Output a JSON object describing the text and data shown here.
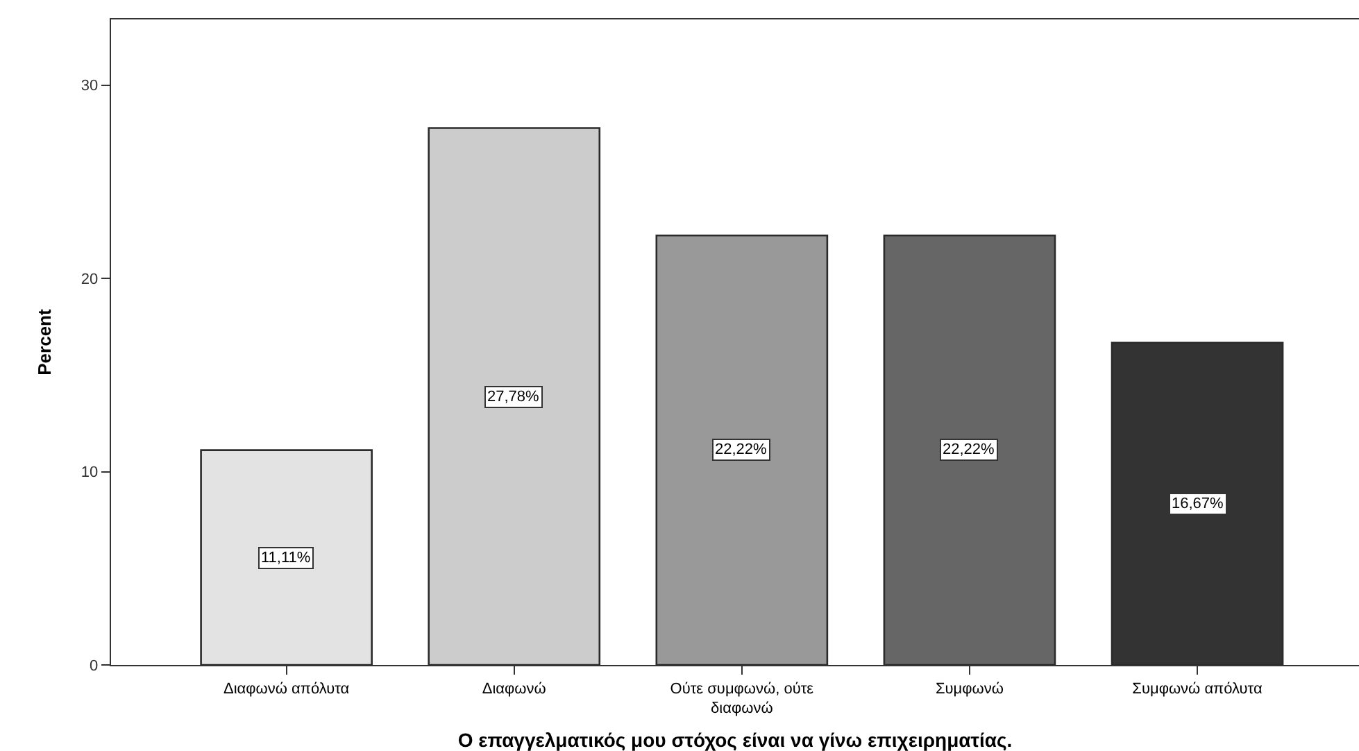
{
  "chart_data": {
    "type": "bar",
    "xlabel": "Ο επαγγελματικός μου στόχος είναι να γίνω επιχειρηματίας.",
    "ylabel": "Percent",
    "categories": [
      "Διαφωνώ απόλυτα",
      "Διαφωνώ",
      "Ούτε συμφωνώ, ούτε διαφωνώ",
      "Συμφωνώ",
      "Συμφωνώ απόλυτα"
    ],
    "values": [
      11.11,
      27.78,
      22.22,
      22.22,
      16.67
    ],
    "colors": [
      "#e3e3e3",
      "#cccccc",
      "#999999",
      "#666666",
      "#333333"
    ],
    "value_labels": [
      "11,11%",
      "27,78%",
      "22,22%",
      "22,22%",
      "16,67%"
    ],
    "ylim": [
      0,
      33.4
    ],
    "yticks": [
      0,
      10,
      20,
      30
    ]
  }
}
